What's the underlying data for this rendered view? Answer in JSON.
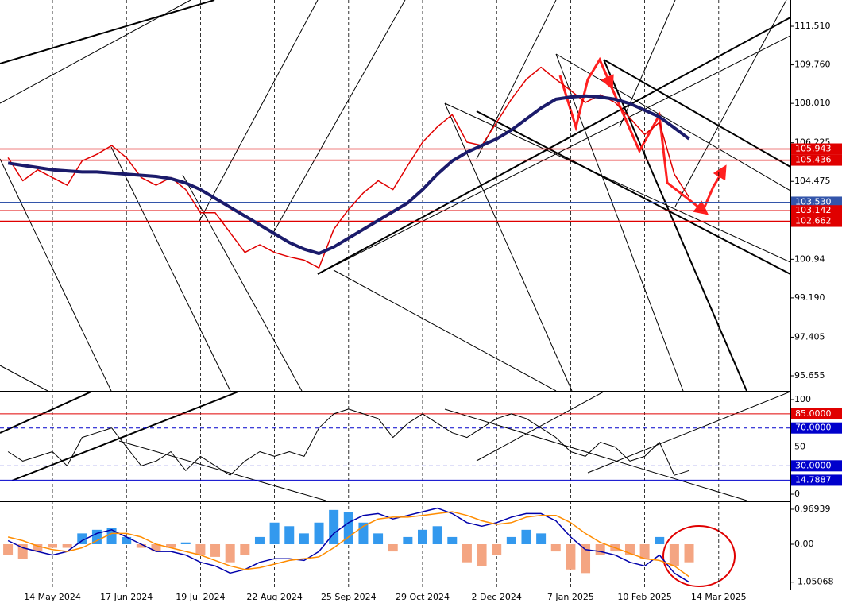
{
  "chart_data": [
    {
      "type": "line",
      "categories": [
        null,
        null,
        null,
        "14 May 2024",
        null,
        null,
        null,
        null,
        "17 Jun 2024",
        null,
        null,
        null,
        null,
        "19 Jul 2024",
        null,
        null,
        null,
        null,
        "22 Aug 2024",
        null,
        null,
        null,
        null,
        "25 Sep 2024",
        null,
        null,
        null,
        null,
        "29 Oct 2024",
        null,
        null,
        null,
        null,
        "2 Dec 2024",
        null,
        null,
        null,
        null,
        "7 Jan 2025",
        null,
        null,
        null,
        null,
        "10 Feb 2025",
        null,
        null,
        null,
        null,
        "14 Mar 2025"
      ],
      "series": [
        {
          "color": "#e00000",
          "line_width": 1.5,
          "values": [
            105.55,
            104.5,
            105.0,
            104.65,
            104.3,
            105.4,
            105.7,
            106.1,
            105.55,
            104.65,
            104.3,
            104.65,
            104.1,
            103.05,
            103.05,
            102.15,
            101.25,
            101.6,
            101.25,
            101.05,
            100.9,
            100.55,
            102.3,
            103.2,
            103.95,
            104.5,
            104.1,
            105.2,
            106.25,
            106.95,
            107.5,
            106.25,
            106.1,
            107.15,
            108.2,
            109.1,
            109.65,
            109.1,
            108.6,
            108.05,
            108.4,
            108.05,
            107.35,
            106.6,
            107.15,
            104.8,
            103.75,
            null,
            null
          ]
        },
        {
          "color": "#1b1b6b",
          "line_width": 4,
          "values": [
            105.3,
            105.2,
            105.1,
            105.0,
            104.95,
            104.9,
            104.9,
            104.85,
            104.8,
            104.75,
            104.7,
            104.6,
            104.4,
            104.1,
            103.7,
            103.3,
            102.9,
            102.5,
            102.1,
            101.7,
            101.4,
            101.2,
            101.5,
            101.9,
            102.3,
            102.7,
            103.1,
            103.5,
            104.1,
            104.8,
            105.4,
            105.8,
            106.1,
            106.4,
            106.8,
            107.3,
            107.8,
            108.2,
            108.3,
            108.35,
            108.3,
            108.2,
            108.0,
            107.7,
            107.4,
            106.9,
            106.4,
            null,
            null
          ]
        }
      ],
      "ylim": [
        94.97,
        112.7
      ],
      "yticks": [
        {
          "value": 111.51,
          "label": "111.510"
        },
        {
          "value": 109.76,
          "label": "109.760"
        },
        {
          "value": 108.01,
          "label": "108.010"
        },
        106.225,
        104.475,
        100.94,
        {
          "value": 99.19,
          "label": "99.190"
        },
        97.405,
        95.655
      ],
      "levels": [
        {
          "value": 105.943,
          "label": "105.943",
          "color": "#e00000"
        },
        {
          "value": 105.436,
          "label": "105.436",
          "color": "#e00000"
        },
        {
          "value": 103.53,
          "label": "103.530",
          "color": "#3355aa"
        },
        {
          "value": 103.142,
          "label": "103.142",
          "color": "#e00000"
        },
        {
          "value": 102.662,
          "label": "102.662",
          "color": "#e00000"
        }
      ],
      "grid": true
    },
    {
      "type": "line",
      "series": [
        {
          "color": "#000000",
          "line_width": 1,
          "values": [
            45,
            35,
            40,
            45,
            30,
            60,
            65,
            70,
            50,
            30,
            35,
            45,
            25,
            40,
            30,
            20,
            35,
            45,
            40,
            45,
            40,
            70,
            85,
            90,
            85,
            80,
            60,
            75,
            85,
            75,
            65,
            60,
            70,
            80,
            85,
            80,
            70,
            60,
            45,
            40,
            55,
            50,
            35,
            40,
            55,
            20,
            25,
            null,
            null
          ]
        }
      ],
      "ylim": [
        -6.7,
        108.4
      ],
      "yticks": [
        0,
        50,
        100
      ],
      "levels": [
        {
          "value": 85,
          "label": "85.0000",
          "color": "#e00000"
        },
        {
          "value": 70,
          "label": "70.0000",
          "color": "#0000cc"
        },
        {
          "value": 30,
          "label": "30.0000",
          "color": "#0000cc"
        },
        {
          "value": 14.7887,
          "label": "14.7887",
          "color": "#0000cc"
        }
      ]
    },
    {
      "type": "bar",
      "values": [
        -0.3,
        -0.4,
        -0.2,
        -0.1,
        -0.1,
        0.3,
        0.4,
        0.45,
        0.2,
        -0.1,
        -0.2,
        -0.1,
        0.05,
        -0.3,
        -0.35,
        -0.5,
        -0.3,
        0.2,
        0.6,
        0.5,
        0.3,
        0.6,
        0.95,
        0.9,
        0.6,
        0.3,
        -0.2,
        0.2,
        0.4,
        0.5,
        0.2,
        -0.5,
        -0.6,
        -0.3,
        0.2,
        0.4,
        0.3,
        -0.2,
        -0.7,
        -0.8,
        -0.3,
        -0.2,
        -0.3,
        -0.4,
        0.2,
        -0.6,
        -0.5,
        null,
        null
      ],
      "positive_color": "#3399ee",
      "negative_color": "#f4a582",
      "series": [
        {
          "color": "#0000aa",
          "line_width": 1.5,
          "values": [
            0.1,
            -0.1,
            -0.2,
            -0.3,
            -0.2,
            0.1,
            0.3,
            0.4,
            0.2,
            0,
            -0.2,
            -0.2,
            -0.3,
            -0.5,
            -0.6,
            -0.8,
            -0.7,
            -0.5,
            -0.4,
            -0.4,
            -0.45,
            -0.2,
            0.3,
            0.6,
            0.8,
            0.85,
            0.7,
            0.8,
            0.9,
            1.0,
            0.85,
            0.6,
            0.5,
            0.6,
            0.75,
            0.85,
            0.85,
            0.65,
            0.2,
            -0.15,
            -0.2,
            -0.3,
            -0.5,
            -0.6,
            -0.3,
            -0.8,
            -1.05,
            null,
            null
          ]
        },
        {
          "color": "#ff8c00",
          "line_width": 1.5,
          "values": [
            0.2,
            0.1,
            -0.05,
            -0.15,
            -0.2,
            -0.1,
            0.1,
            0.3,
            0.3,
            0.2,
            0,
            -0.1,
            -0.2,
            -0.3,
            -0.45,
            -0.6,
            -0.7,
            -0.65,
            -0.55,
            -0.45,
            -0.4,
            -0.35,
            -0.1,
            0.2,
            0.5,
            0.7,
            0.75,
            0.75,
            0.8,
            0.85,
            0.9,
            0.8,
            0.65,
            0.55,
            0.6,
            0.75,
            0.8,
            0.8,
            0.6,
            0.3,
            0.05,
            -0.1,
            -0.25,
            -0.4,
            -0.45,
            -0.6,
            -0.9,
            null,
            null
          ]
        }
      ],
      "ylim": [
        -1.255,
        1.167
      ],
      "yticks": [
        0.96939,
        {
          "value": 0,
          "label": "0.00"
        },
        -1.05068
      ]
    }
  ]
}
